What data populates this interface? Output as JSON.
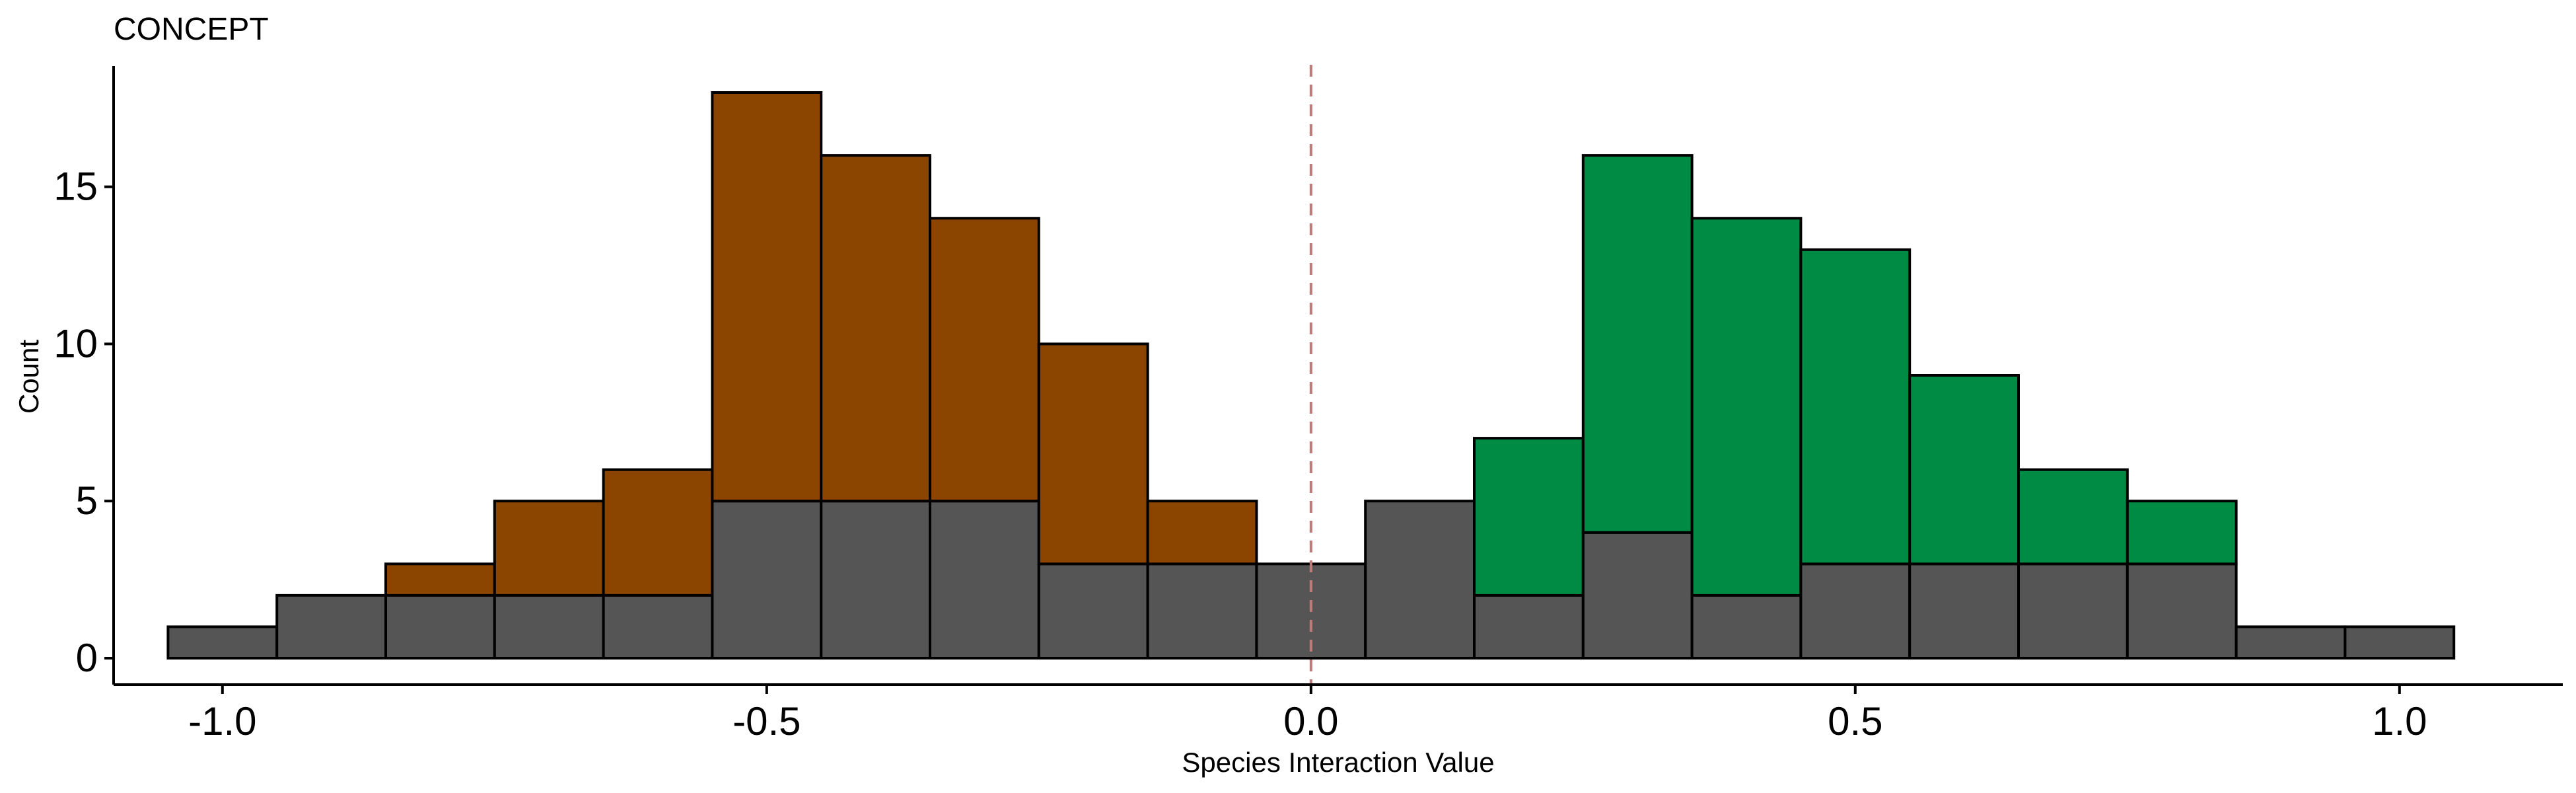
{
  "chart_data": {
    "type": "bar",
    "title": "CONCEPT",
    "xlabel": "Species Interaction Value",
    "ylabel": "Count",
    "xlim": [
      -1.1,
      1.15
    ],
    "ylim": [
      0,
      19
    ],
    "xticks": [
      -1.0,
      -0.5,
      0.0,
      0.5,
      1.0
    ],
    "xtick_labels": [
      "-1.0",
      "-0.5",
      "0.0",
      "0.5",
      "1.0"
    ],
    "yticks": [
      0,
      5,
      10,
      15
    ],
    "ytick_labels": [
      "0",
      "5",
      "10",
      "15"
    ],
    "bin_width": 0.1,
    "bin_centers": [
      -1.0,
      -0.9,
      -0.8,
      -0.7,
      -0.6,
      -0.5,
      -0.4,
      -0.3,
      -0.2,
      -0.1,
      0.0,
      0.1,
      0.2,
      0.3,
      0.4,
      0.5,
      0.6,
      0.7,
      0.8,
      0.9,
      1.0
    ],
    "series": [
      {
        "color": "#8B4500",
        "values": [
          0,
          0,
          1,
          3,
          4,
          13,
          11,
          9,
          7,
          2,
          0,
          0,
          0,
          0,
          0,
          0,
          0,
          0,
          0,
          0,
          0
        ]
      },
      {
        "color": "#008B45",
        "values": [
          0,
          0,
          0,
          0,
          0,
          0,
          0,
          0,
          0,
          0,
          0,
          0,
          5,
          12,
          12,
          10,
          6,
          3,
          2,
          0,
          0
        ]
      },
      {
        "color": "#555555",
        "values": [
          1,
          2,
          2,
          2,
          2,
          5,
          5,
          5,
          3,
          3,
          3,
          5,
          2,
          4,
          2,
          3,
          3,
          3,
          3,
          1,
          1
        ]
      }
    ],
    "stack_order": [
      "grey at bottom",
      "colored on top"
    ],
    "reference_line": {
      "x": 0.0,
      "style": "dashed",
      "color": "#C07A7A"
    },
    "grid": false,
    "legend": "none"
  }
}
